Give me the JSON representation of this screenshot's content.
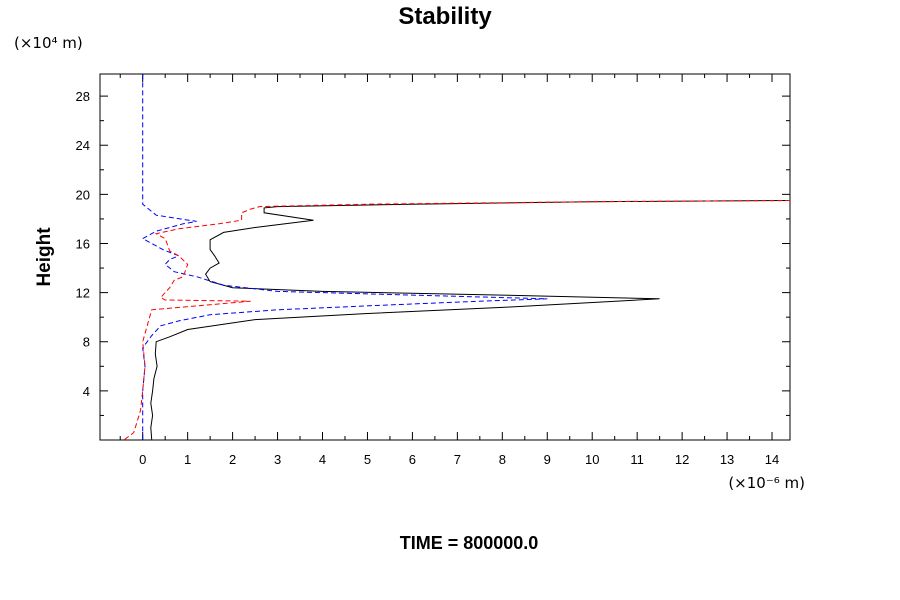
{
  "chart_data": {
    "type": "line",
    "title": "Stability",
    "xlabel": "",
    "ylabel": "Height",
    "x_unit_label": "(×10⁻⁶ m)",
    "y_unit_label": "(×10⁴ m)",
    "footer": "TIME = 800000.0",
    "xlim": [
      -0.95,
      14.4
    ],
    "ylim": [
      0,
      29.8
    ],
    "x_ticks": [
      0,
      1,
      2,
      3,
      4,
      5,
      6,
      7,
      8,
      9,
      10,
      11,
      12,
      13,
      14
    ],
    "y_ticks": [
      4,
      8,
      12,
      16,
      20,
      24,
      28
    ],
    "grid": false,
    "series": [
      {
        "color": "#000000",
        "dash": "solid",
        "x": [
          0.2,
          0.18,
          0.22,
          0.18,
          0.22,
          0.25,
          0.32,
          0.28,
          0.3,
          0.6,
          1.0,
          2.5,
          5.0,
          8.0,
          11.5,
          8.0,
          4.0,
          2.0,
          1.5,
          1.4,
          1.5,
          1.7,
          1.6,
          1.5,
          1.5,
          1.8,
          2.5,
          3.8,
          2.7,
          2.7,
          3.0,
          6.0,
          10.0,
          14.4
        ],
        "y": [
          0.05,
          1.0,
          2.0,
          3.0,
          4.0,
          5.0,
          6.0,
          7.0,
          8.0,
          8.4,
          9.0,
          9.8,
          10.3,
          10.8,
          11.5,
          11.8,
          12.1,
          12.4,
          12.9,
          13.5,
          14.0,
          14.4,
          15.0,
          15.5,
          16.3,
          16.9,
          17.3,
          17.9,
          18.5,
          18.9,
          19.0,
          19.2,
          19.4,
          19.5
        ]
      },
      {
        "color": "#0000ff",
        "dash": "dashed",
        "x": [
          0.0,
          0.0,
          0.0,
          0.05,
          0.0,
          0.2,
          0.4,
          0.8,
          1.5,
          3.0,
          5.5,
          7.5,
          9.0,
          6.0,
          3.0,
          1.8,
          1.2,
          0.7,
          0.5,
          0.6,
          0.8,
          0.45,
          0.0,
          0.3,
          0.9,
          1.2,
          0.3,
          0.0,
          0.0,
          0.0
        ],
        "y": [
          0.05,
          2.0,
          4.0,
          6.0,
          7.5,
          8.5,
          9.3,
          9.7,
          10.2,
          10.6,
          11.0,
          11.3,
          11.5,
          11.8,
          12.1,
          12.6,
          13.3,
          13.7,
          14.3,
          14.7,
          15.0,
          15.5,
          16.4,
          17.0,
          17.6,
          17.8,
          18.3,
          19.2,
          24.0,
          29.8
        ]
      },
      {
        "color": "#ff0000",
        "dash": "dashed",
        "x": [
          -0.4,
          -0.2,
          -0.15,
          -0.05,
          0.0,
          0.05,
          0.0,
          0.2,
          2.4,
          0.5,
          0.4,
          0.6,
          0.7,
          0.9,
          1.0,
          0.8,
          0.6,
          0.5,
          0.3,
          0.8,
          1.7,
          2.2,
          2.2,
          2.4,
          2.6,
          5.0,
          10.0,
          14.4
        ],
        "y": [
          0.05,
          0.6,
          1.2,
          2.4,
          4.0,
          6.0,
          8.0,
          10.6,
          11.3,
          11.4,
          11.6,
          12.4,
          13.0,
          13.3,
          14.3,
          15.0,
          15.4,
          16.4,
          16.8,
          17.2,
          17.6,
          17.9,
          18.5,
          18.8,
          19.0,
          19.2,
          19.4,
          19.5
        ]
      }
    ]
  }
}
